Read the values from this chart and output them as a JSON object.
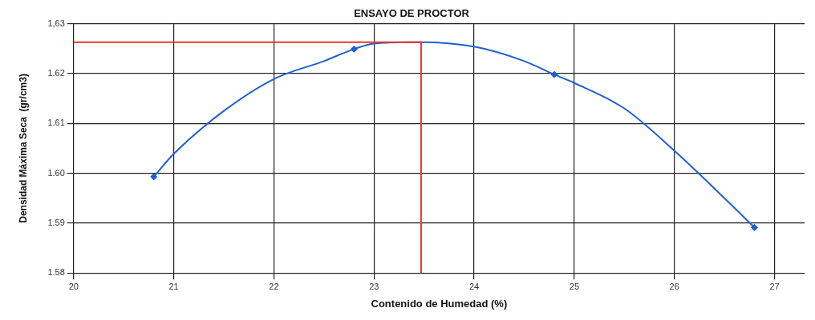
{
  "chart_data": {
    "type": "scatter",
    "title": "ENSAYO DE PROCTOR",
    "xlabel": "Contenido de Humedad (%)",
    "ylabel": "Densidad Máxima Seca  (gr/cm3)",
    "series": [
      {
        "type": "line",
        "color": "#1f5fd6",
        "marker": "none",
        "x": [
          20.8,
          21,
          21.5,
          22,
          22.5,
          22.8,
          23,
          23.47,
          24,
          24.5,
          24.8,
          25,
          25.5,
          26,
          26.5,
          26.8
        ],
        "values": [
          1.5993,
          1.6039,
          1.6125,
          1.6189,
          1.6225,
          1.6249,
          1.626,
          1.6263,
          1.6254,
          1.6225,
          1.6198,
          1.6181,
          1.613,
          1.6045,
          1.595,
          1.5891
        ]
      },
      {
        "type": "scatter",
        "color": "#1f5fd6",
        "marker": "diamond",
        "x": [
          20.8,
          22.8,
          24.8,
          26.8
        ],
        "values": [
          1.5993,
          1.6249,
          1.6198,
          1.5891
        ]
      }
    ],
    "xlim": [
      20,
      27.3
    ],
    "xticks": [
      20,
      21,
      22,
      23,
      24,
      25,
      26,
      27
    ],
    "ylim": [
      1.58,
      1.63
    ],
    "yticks": [
      1.58,
      1.59,
      {
        "value": 1.6,
        "label": "1.60"
      },
      1.61,
      1.62,
      {
        "value": 1.63,
        "label": "1,63"
      }
    ],
    "ref_lines": [
      {
        "axis": "y",
        "value": 1.6263,
        "color": "#e8392b"
      },
      {
        "axis": "x",
        "value": 23.47,
        "color": "#e8392b"
      }
    ],
    "grid": true,
    "legend": false
  }
}
